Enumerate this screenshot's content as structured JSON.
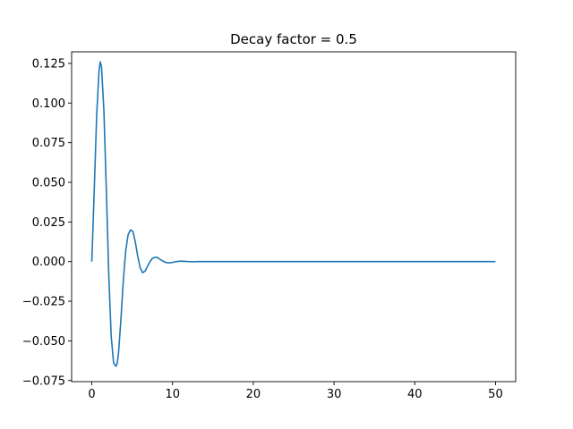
{
  "chart_data": {
    "type": "line",
    "title": "Decay factor = 0.5",
    "xlabel": "",
    "ylabel": "",
    "xlim": [
      -2.5,
      52.5
    ],
    "ylim": [
      -0.0757,
      0.1323
    ],
    "xticks": [
      0,
      10,
      20,
      30,
      40,
      50
    ],
    "xtick_labels": [
      "0",
      "10",
      "20",
      "30",
      "40",
      "50"
    ],
    "yticks": [
      -0.075,
      -0.05,
      -0.025,
      0.0,
      0.025,
      0.05,
      0.075,
      0.1,
      0.125
    ],
    "ytick_labels": [
      "−0.075",
      "−0.050",
      "−0.025",
      "0.000",
      "0.025",
      "0.050",
      "0.075",
      "0.100",
      "0.125"
    ],
    "grid": false,
    "legend": "none",
    "line_color": "#1f77b4",
    "series": [
      {
        "x": [
          0,
          0.3,
          0.6,
          0.9,
          1.05,
          1.2,
          1.5,
          1.8,
          2.1,
          2.4,
          2.7,
          3.0,
          3.15,
          3.3,
          3.6,
          3.9,
          4.2,
          4.5,
          4.8,
          5.1,
          5.4,
          5.7,
          6.0,
          6.3,
          6.6,
          6.9,
          7.2,
          7.5,
          7.8,
          8.1,
          8.4,
          8.7,
          9.0,
          9.3,
          9.6,
          9.9,
          10.2,
          10.5,
          10.8,
          11.1,
          11.4,
          11.7,
          12.0,
          12.5,
          13.0,
          13.5,
          14.0,
          14.5,
          15.0,
          16.0,
          17.0,
          18.0,
          20.0,
          25.0,
          30.0,
          35.0,
          40.0,
          45.0,
          50.0
        ],
        "y": [
          0.0,
          0.045,
          0.092,
          0.121,
          0.126,
          0.123,
          0.095,
          0.045,
          -0.008,
          -0.047,
          -0.064,
          -0.066,
          -0.064,
          -0.058,
          -0.037,
          -0.012,
          0.007,
          0.017,
          0.02,
          0.019,
          0.012,
          0.003,
          -0.004,
          -0.007,
          -0.006,
          -0.003,
          0.0,
          0.002,
          0.0027,
          0.0026,
          0.0016,
          0.0006,
          -0.0002,
          -0.0007,
          -0.0008,
          -0.0006,
          -0.0003,
          0.0,
          0.0002,
          0.0003,
          0.0002,
          0.0001,
          0.0,
          -0.0001,
          0.0,
          0.0,
          0.0,
          0.0,
          0.0,
          0.0,
          0.0,
          0.0,
          0.0,
          0.0,
          0.0,
          0.0,
          0.0,
          0.0,
          0.0
        ]
      }
    ]
  }
}
